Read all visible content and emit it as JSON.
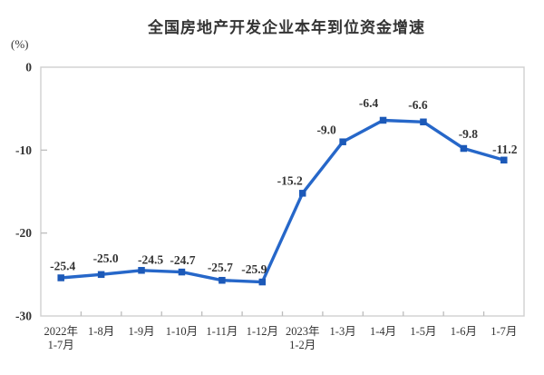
{
  "chart_data": {
    "type": "line",
    "title": "全国房地产开发企业本年到位资金增速",
    "ylabel": "(%)",
    "xlabel": "",
    "categories": [
      [
        "2022年",
        "1-7月"
      ],
      [
        "1-8月"
      ],
      [
        "1-9月"
      ],
      [
        "1-10月"
      ],
      [
        "1-11月"
      ],
      [
        "1-12月"
      ],
      [
        "2023年",
        "1-2月"
      ],
      [
        "1-3月"
      ],
      [
        "1-4月"
      ],
      [
        "1-5月"
      ],
      [
        "1-6月"
      ],
      [
        "1-7月"
      ]
    ],
    "series": [
      {
        "name": "全国房地产开发企业本年到位资金增速",
        "values": [
          -25.4,
          -25.0,
          -24.5,
          -24.7,
          -25.7,
          -25.9,
          -15.2,
          -9.0,
          -6.4,
          -6.6,
          -9.8,
          -11.2
        ],
        "labels": [
          "-25.4",
          "-25.0",
          "-24.5",
          "-24.7",
          "-25.7",
          "-25.9",
          "-15.2",
          "-9.0",
          "-6.4",
          "-6.6",
          "-9.8",
          "-11.2"
        ]
      }
    ],
    "y_ticks": [
      {
        "value": 0,
        "label": "0"
      },
      {
        "value": -10,
        "label": "-10"
      },
      {
        "value": -20,
        "label": "-20"
      },
      {
        "value": -30,
        "label": "-30"
      }
    ],
    "ylim": [
      -30,
      0
    ],
    "grid": false,
    "legend": "none",
    "colors": {
      "line": "#2667C9",
      "marker": "#1C59B8",
      "border": "#CFCFCF",
      "tick": "#BDBDBD",
      "text": "#333333",
      "background": "#FFFFFF"
    }
  }
}
